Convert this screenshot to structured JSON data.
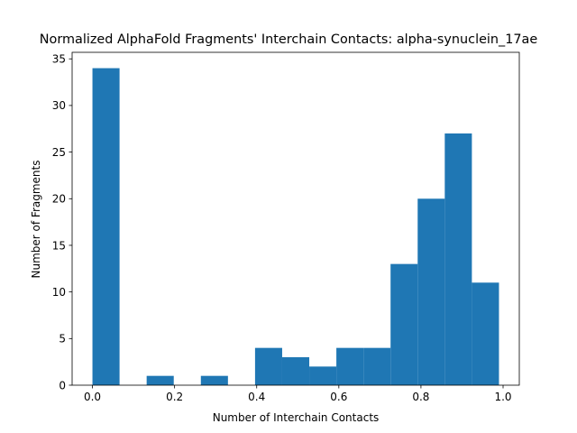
{
  "chart_data": {
    "type": "bar",
    "title": "Normalized AlphaFold Fragments' Interchain Contacts: alpha-synuclein_17ae",
    "xlabel": "Number of Interchain Contacts",
    "ylabel": "Number of Fragments",
    "bar_color": "#1f77b4",
    "xlim": [
      -0.0495,
      1.0395
    ],
    "ylim": [
      0,
      35.7
    ],
    "xticks": [
      0.0,
      0.2,
      0.4,
      0.6,
      0.8,
      1.0
    ],
    "xtick_labels": [
      "0.0",
      "0.2",
      "0.4",
      "0.6",
      "0.8",
      "1.0"
    ],
    "yticks": [
      0,
      5,
      10,
      15,
      20,
      25,
      30,
      35
    ],
    "ytick_labels": [
      "0",
      "5",
      "10",
      "15",
      "20",
      "25",
      "30",
      "35"
    ],
    "bins": [
      {
        "x0": 0.0,
        "x1": 0.066,
        "count": 34
      },
      {
        "x0": 0.066,
        "x1": 0.132,
        "count": 0
      },
      {
        "x0": 0.132,
        "x1": 0.198,
        "count": 1
      },
      {
        "x0": 0.198,
        "x1": 0.264,
        "count": 0
      },
      {
        "x0": 0.264,
        "x1": 0.33,
        "count": 1
      },
      {
        "x0": 0.33,
        "x1": 0.396,
        "count": 0
      },
      {
        "x0": 0.396,
        "x1": 0.462,
        "count": 4
      },
      {
        "x0": 0.462,
        "x1": 0.528,
        "count": 3
      },
      {
        "x0": 0.528,
        "x1": 0.594,
        "count": 2
      },
      {
        "x0": 0.594,
        "x1": 0.66,
        "count": 4
      },
      {
        "x0": 0.66,
        "x1": 0.726,
        "count": 4
      },
      {
        "x0": 0.726,
        "x1": 0.792,
        "count": 13
      },
      {
        "x0": 0.792,
        "x1": 0.858,
        "count": 20
      },
      {
        "x0": 0.858,
        "x1": 0.924,
        "count": 27
      },
      {
        "x0": 0.924,
        "x1": 0.99,
        "count": 11
      }
    ]
  }
}
